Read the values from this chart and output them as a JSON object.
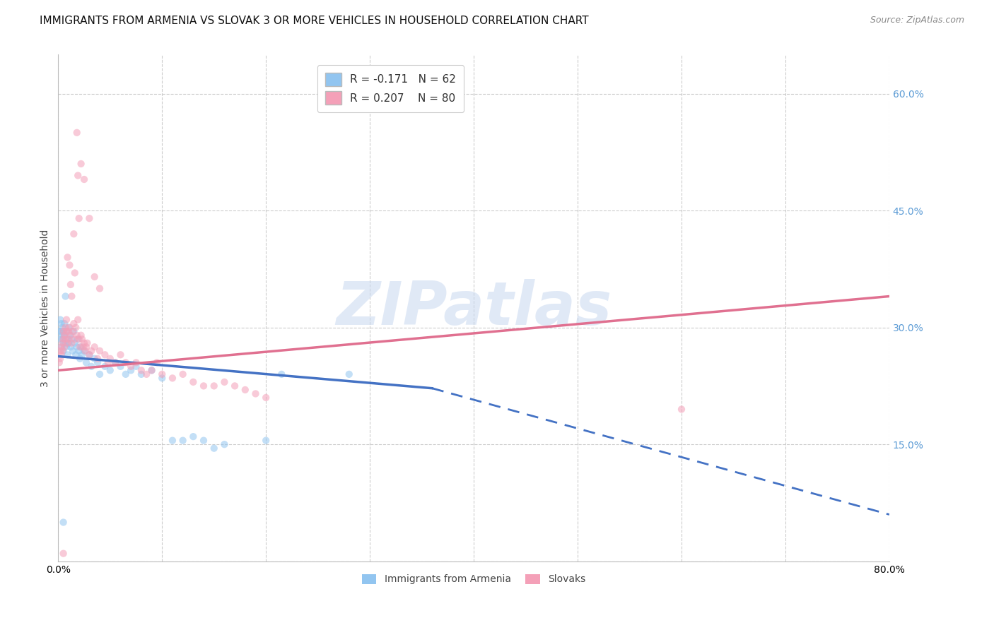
{
  "title": "IMMIGRANTS FROM ARMENIA VS SLOVAK 3 OR MORE VEHICLES IN HOUSEHOLD CORRELATION CHART",
  "source": "Source: ZipAtlas.com",
  "ylabel": "3 or more Vehicles in Household",
  "xlim": [
    0.0,
    0.8
  ],
  "ylim": [
    0.0,
    0.65
  ],
  "y_ticks_right": [
    0.0,
    0.15,
    0.3,
    0.45,
    0.6
  ],
  "y_tick_labels_right": [
    "",
    "15.0%",
    "30.0%",
    "45.0%",
    "60.0%"
  ],
  "armenia_color": "#92C5F0",
  "slovak_color": "#F4A0B8",
  "armenia_scatter": [
    [
      0.001,
      0.295
    ],
    [
      0.002,
      0.31
    ],
    [
      0.002,
      0.285
    ],
    [
      0.003,
      0.305
    ],
    [
      0.003,
      0.295
    ],
    [
      0.003,
      0.275
    ],
    [
      0.004,
      0.3
    ],
    [
      0.004,
      0.29
    ],
    [
      0.004,
      0.285
    ],
    [
      0.005,
      0.295
    ],
    [
      0.005,
      0.28
    ],
    [
      0.005,
      0.27
    ],
    [
      0.006,
      0.305
    ],
    [
      0.006,
      0.29
    ],
    [
      0.007,
      0.34
    ],
    [
      0.007,
      0.28
    ],
    [
      0.008,
      0.295
    ],
    [
      0.008,
      0.275
    ],
    [
      0.009,
      0.285
    ],
    [
      0.009,
      0.265
    ],
    [
      0.01,
      0.3
    ],
    [
      0.01,
      0.28
    ],
    [
      0.011,
      0.29
    ],
    [
      0.012,
      0.275
    ],
    [
      0.013,
      0.285
    ],
    [
      0.014,
      0.27
    ],
    [
      0.015,
      0.295
    ],
    [
      0.016,
      0.28
    ],
    [
      0.017,
      0.265
    ],
    [
      0.018,
      0.275
    ],
    [
      0.019,
      0.285
    ],
    [
      0.02,
      0.27
    ],
    [
      0.021,
      0.26
    ],
    [
      0.022,
      0.275
    ],
    [
      0.023,
      0.265
    ],
    [
      0.025,
      0.27
    ],
    [
      0.027,
      0.255
    ],
    [
      0.03,
      0.265
    ],
    [
      0.032,
      0.25
    ],
    [
      0.035,
      0.26
    ],
    [
      0.038,
      0.255
    ],
    [
      0.04,
      0.24
    ],
    [
      0.045,
      0.25
    ],
    [
      0.05,
      0.245
    ],
    [
      0.055,
      0.255
    ],
    [
      0.06,
      0.25
    ],
    [
      0.065,
      0.24
    ],
    [
      0.07,
      0.245
    ],
    [
      0.075,
      0.25
    ],
    [
      0.08,
      0.24
    ],
    [
      0.09,
      0.245
    ],
    [
      0.1,
      0.235
    ],
    [
      0.11,
      0.155
    ],
    [
      0.12,
      0.155
    ],
    [
      0.13,
      0.16
    ],
    [
      0.14,
      0.155
    ],
    [
      0.15,
      0.145
    ],
    [
      0.16,
      0.15
    ],
    [
      0.2,
      0.155
    ],
    [
      0.215,
      0.24
    ],
    [
      0.28,
      0.24
    ],
    [
      0.005,
      0.05
    ]
  ],
  "slovak_scatter": [
    [
      0.001,
      0.255
    ],
    [
      0.002,
      0.27
    ],
    [
      0.002,
      0.26
    ],
    [
      0.003,
      0.275
    ],
    [
      0.003,
      0.265
    ],
    [
      0.004,
      0.28
    ],
    [
      0.004,
      0.27
    ],
    [
      0.005,
      0.295
    ],
    [
      0.005,
      0.285
    ],
    [
      0.006,
      0.275
    ],
    [
      0.006,
      0.29
    ],
    [
      0.007,
      0.3
    ],
    [
      0.007,
      0.285
    ],
    [
      0.008,
      0.31
    ],
    [
      0.008,
      0.295
    ],
    [
      0.009,
      0.28
    ],
    [
      0.009,
      0.39
    ],
    [
      0.01,
      0.295
    ],
    [
      0.01,
      0.285
    ],
    [
      0.011,
      0.3
    ],
    [
      0.011,
      0.38
    ],
    [
      0.012,
      0.29
    ],
    [
      0.012,
      0.355
    ],
    [
      0.013,
      0.28
    ],
    [
      0.013,
      0.34
    ],
    [
      0.014,
      0.295
    ],
    [
      0.015,
      0.305
    ],
    [
      0.015,
      0.42
    ],
    [
      0.016,
      0.285
    ],
    [
      0.016,
      0.37
    ],
    [
      0.017,
      0.3
    ],
    [
      0.018,
      0.29
    ],
    [
      0.018,
      0.55
    ],
    [
      0.019,
      0.31
    ],
    [
      0.019,
      0.495
    ],
    [
      0.02,
      0.285
    ],
    [
      0.02,
      0.44
    ],
    [
      0.021,
      0.275
    ],
    [
      0.022,
      0.29
    ],
    [
      0.022,
      0.51
    ],
    [
      0.023,
      0.285
    ],
    [
      0.024,
      0.275
    ],
    [
      0.025,
      0.28
    ],
    [
      0.025,
      0.49
    ],
    [
      0.026,
      0.27
    ],
    [
      0.027,
      0.275
    ],
    [
      0.028,
      0.28
    ],
    [
      0.03,
      0.265
    ],
    [
      0.03,
      0.44
    ],
    [
      0.032,
      0.27
    ],
    [
      0.035,
      0.275
    ],
    [
      0.035,
      0.365
    ],
    [
      0.038,
      0.26
    ],
    [
      0.04,
      0.27
    ],
    [
      0.04,
      0.35
    ],
    [
      0.045,
      0.265
    ],
    [
      0.048,
      0.255
    ],
    [
      0.05,
      0.26
    ],
    [
      0.055,
      0.255
    ],
    [
      0.06,
      0.265
    ],
    [
      0.065,
      0.255
    ],
    [
      0.07,
      0.25
    ],
    [
      0.075,
      0.255
    ],
    [
      0.08,
      0.245
    ],
    [
      0.085,
      0.24
    ],
    [
      0.09,
      0.245
    ],
    [
      0.095,
      0.255
    ],
    [
      0.1,
      0.24
    ],
    [
      0.11,
      0.235
    ],
    [
      0.12,
      0.24
    ],
    [
      0.13,
      0.23
    ],
    [
      0.14,
      0.225
    ],
    [
      0.15,
      0.225
    ],
    [
      0.16,
      0.23
    ],
    [
      0.17,
      0.225
    ],
    [
      0.18,
      0.22
    ],
    [
      0.19,
      0.215
    ],
    [
      0.2,
      0.21
    ],
    [
      0.6,
      0.195
    ],
    [
      0.005,
      0.01
    ]
  ],
  "armenia_trend_solid": {
    "x_start": 0.0,
    "x_end": 0.36,
    "y_start": 0.263,
    "y_end": 0.222
  },
  "armenia_trend_dash": {
    "x_start": 0.36,
    "x_end": 0.8,
    "y_start": 0.222,
    "y_end": 0.06
  },
  "slovak_trend": {
    "x_start": 0.0,
    "x_end": 0.8,
    "y_start": 0.245,
    "y_end": 0.34
  },
  "armenia_line_color": "#4472C4",
  "slovak_line_color": "#E07090",
  "watermark_text": "ZIPatlas",
  "watermark_color": "#C8D8F0",
  "grid_color": "#CCCCCC",
  "background_color": "#FFFFFF",
  "title_fontsize": 11,
  "axis_label_fontsize": 10,
  "tick_fontsize": 10,
  "right_tick_color": "#5B9BD5",
  "scatter_size": 55,
  "scatter_alpha": 0.55,
  "legend_top": [
    {
      "label": "R = -0.171   N = 62",
      "color": "#92C5F0"
    },
    {
      "label": "R = 0.207    N = 80",
      "color": "#F4A0B8"
    }
  ],
  "legend_bottom": [
    {
      "label": "Immigrants from Armenia",
      "color": "#92C5F0"
    },
    {
      "label": "Slovaks",
      "color": "#F4A0B8"
    }
  ]
}
